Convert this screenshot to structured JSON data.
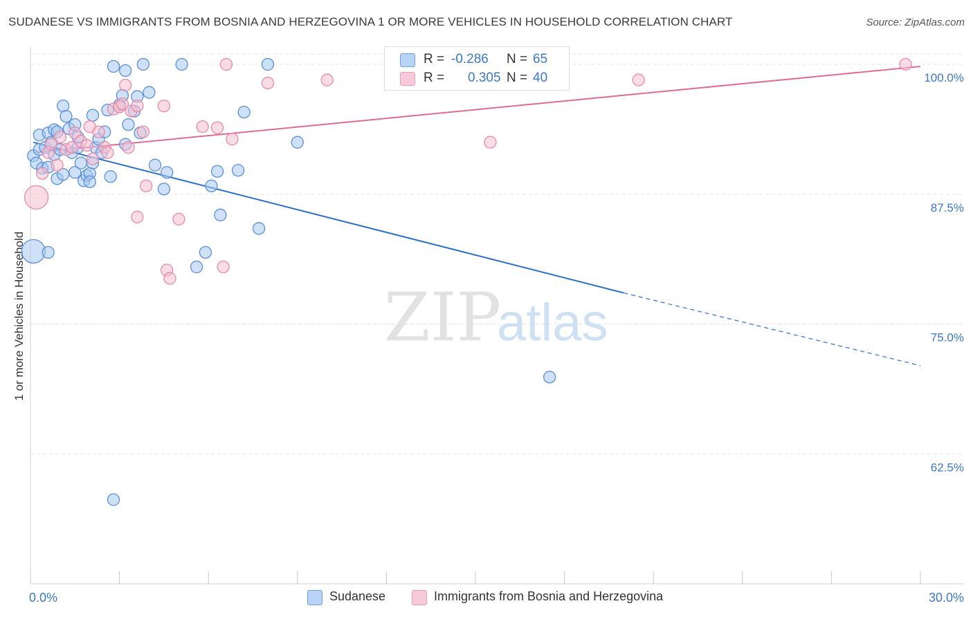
{
  "title": "SUDANESE VS IMMIGRANTS FROM BOSNIA AND HERZEGOVINA 1 OR MORE VEHICLES IN HOUSEHOLD CORRELATION CHART",
  "source": "Source: ZipAtlas.com",
  "legend": {
    "r_label": "R =",
    "n_label": "N =",
    "series": [
      {
        "r": "-0.286",
        "n": "65"
      },
      {
        "r": "0.305",
        "n": "40"
      }
    ]
  },
  "bottom_legend": [
    "Sudanese",
    "Immigrants from Bosnia and Herzegovina"
  ],
  "watermark": {
    "zip": "ZIP",
    "atlas": "atlas"
  },
  "colors": {
    "blue_fill": "#a8c8f0",
    "blue_stroke": "#5a8fd8",
    "blue_line": "#2a6fcc",
    "pink_fill": "#f6bfd0",
    "pink_stroke": "#e58aa8",
    "pink_line": "#e06a95",
    "axis_text": "#3a78c9",
    "grid": "#e4e4e4"
  },
  "chart_data": {
    "type": "scatter",
    "title": "SUDANESE VS IMMIGRANTS FROM BOSNIA AND HERZEGOVINA 1 OR MORE VEHICLES IN HOUSEHOLD CORRELATION CHART",
    "xlabel": "",
    "ylabel": "1 or more Vehicles in Household",
    "xlim": [
      0,
      30
    ],
    "ylim": [
      50,
      101
    ],
    "x_tick_labels": [
      {
        "value": 0,
        "label": "0.0%"
      },
      {
        "value": 30,
        "label": "30.0%"
      }
    ],
    "x_minor_ticks": [
      0,
      3,
      6,
      9,
      12,
      15,
      18,
      21,
      24,
      27,
      30
    ],
    "y_ticks": [
      {
        "value": 100,
        "label": "100.0%"
      },
      {
        "value": 87.5,
        "label": "87.5%"
      },
      {
        "value": 75,
        "label": "75.0%"
      },
      {
        "value": 62.5,
        "label": "62.5%"
      }
    ],
    "grid": true,
    "series": [
      {
        "name": "Sudanese",
        "color": "blue",
        "points": [
          [
            0.1,
            91.2
          ],
          [
            0.2,
            90.5
          ],
          [
            0.3,
            93.2
          ],
          [
            0.3,
            91.8
          ],
          [
            0.4,
            90.0
          ],
          [
            0.5,
            92.0
          ],
          [
            0.6,
            93.4
          ],
          [
            0.6,
            90.1
          ],
          [
            0.7,
            92.5
          ],
          [
            0.8,
            93.7
          ],
          [
            0.8,
            91.3
          ],
          [
            0.9,
            93.5
          ],
          [
            1.0,
            91.8
          ],
          [
            0.9,
            89.0
          ],
          [
            1.1,
            89.4
          ],
          [
            1.1,
            96.0
          ],
          [
            1.2,
            95.0
          ],
          [
            1.3,
            93.8
          ],
          [
            1.4,
            91.5
          ],
          [
            1.5,
            89.6
          ],
          [
            1.6,
            92.0
          ],
          [
            1.6,
            93.0
          ],
          [
            1.5,
            94.2
          ],
          [
            1.7,
            90.5
          ],
          [
            1.8,
            88.8
          ],
          [
            1.9,
            89.3
          ],
          [
            2.0,
            89.5
          ],
          [
            2.0,
            88.7
          ],
          [
            2.1,
            95.1
          ],
          [
            2.2,
            92.0
          ],
          [
            2.3,
            92.8
          ],
          [
            2.4,
            91.5
          ],
          [
            2.5,
            93.5
          ],
          [
            2.1,
            90.5
          ],
          [
            2.6,
            95.6
          ],
          [
            2.7,
            89.2
          ],
          [
            2.8,
            99.8
          ],
          [
            3.0,
            96.1
          ],
          [
            3.1,
            97.0
          ],
          [
            3.2,
            99.4
          ],
          [
            3.3,
            94.2
          ],
          [
            3.2,
            92.3
          ],
          [
            3.6,
            96.9
          ],
          [
            3.7,
            93.4
          ],
          [
            3.8,
            100.0
          ],
          [
            4.0,
            97.3
          ],
          [
            3.5,
            95.5
          ],
          [
            4.2,
            90.3
          ],
          [
            4.5,
            88.0
          ],
          [
            5.1,
            100.0
          ],
          [
            4.6,
            89.6
          ],
          [
            5.6,
            80.5
          ],
          [
            5.9,
            81.9
          ],
          [
            6.1,
            88.3
          ],
          [
            6.3,
            89.7
          ],
          [
            6.4,
            85.5
          ],
          [
            7.2,
            95.4
          ],
          [
            8.0,
            100.0
          ],
          [
            7.0,
            89.8
          ],
          [
            7.7,
            84.2
          ],
          [
            9.0,
            92.5
          ],
          [
            2.8,
            58.1
          ],
          [
            17.5,
            69.9
          ],
          [
            0.1,
            82.0
          ],
          [
            0.6,
            81.9
          ]
        ],
        "trend": {
          "x0": 0.1,
          "y0": 92.5,
          "x1": 20.0,
          "y1": 78.0,
          "dash_to_x": 30,
          "dash_to_y": 71.0
        }
      },
      {
        "name": "Immigrants from Bosnia and Herzegovina",
        "color": "pink",
        "points": [
          [
            0.2,
            87.2
          ],
          [
            0.4,
            89.5
          ],
          [
            0.6,
            91.5
          ],
          [
            0.7,
            92.3
          ],
          [
            0.9,
            90.3
          ],
          [
            1.0,
            93.0
          ],
          [
            1.2,
            91.8
          ],
          [
            1.4,
            92.0
          ],
          [
            1.5,
            93.4
          ],
          [
            1.7,
            92.6
          ],
          [
            1.9,
            92.2
          ],
          [
            2.0,
            94.0
          ],
          [
            2.1,
            90.9
          ],
          [
            2.3,
            93.5
          ],
          [
            2.5,
            92.0
          ],
          [
            2.6,
            91.5
          ],
          [
            2.8,
            95.7
          ],
          [
            3.0,
            95.9
          ],
          [
            3.1,
            96.2
          ],
          [
            3.2,
            98.0
          ],
          [
            3.3,
            92.0
          ],
          [
            3.4,
            95.5
          ],
          [
            3.6,
            96.0
          ],
          [
            3.8,
            93.5
          ],
          [
            3.9,
            88.3
          ],
          [
            3.6,
            85.3
          ],
          [
            4.5,
            96.0
          ],
          [
            4.6,
            80.2
          ],
          [
            4.7,
            79.4
          ],
          [
            5.0,
            85.1
          ],
          [
            5.8,
            94.0
          ],
          [
            6.3,
            93.9
          ],
          [
            6.5,
            80.5
          ],
          [
            6.8,
            92.8
          ],
          [
            6.6,
            100.0
          ],
          [
            8.0,
            98.2
          ],
          [
            10.0,
            98.5
          ],
          [
            15.5,
            92.5
          ],
          [
            20.5,
            98.5
          ],
          [
            29.5,
            100.0
          ]
        ],
        "trend": {
          "x0": 0.1,
          "y0": 91.5,
          "x1": 30,
          "y1": 99.8
        }
      }
    ]
  }
}
